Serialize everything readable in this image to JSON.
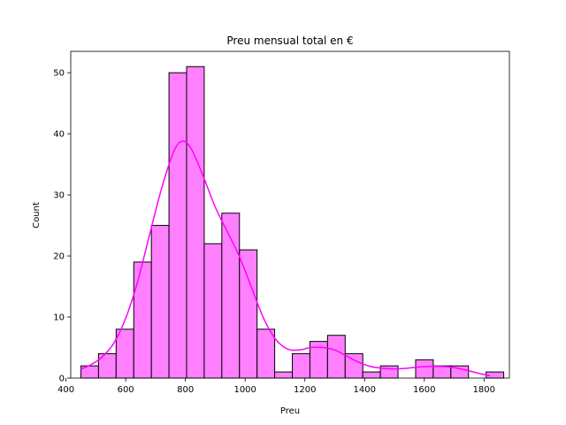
{
  "chart_data": {
    "type": "bar",
    "title": "Preu mensual total en €",
    "xlabel": "Preu",
    "ylabel": "Count",
    "xlim": [
      416,
      1885
    ],
    "ylim": [
      0,
      53.5
    ],
    "xticks": [
      400,
      600,
      800,
      1000,
      1200,
      1400,
      1600,
      1800
    ],
    "yticks": [
      0,
      10,
      20,
      30,
      40,
      50
    ],
    "grid": false,
    "bins": [
      {
        "x0": 450,
        "x1": 509,
        "count": 2
      },
      {
        "x0": 509,
        "x1": 568,
        "count": 4
      },
      {
        "x0": 568,
        "x1": 627,
        "count": 8
      },
      {
        "x0": 627,
        "x1": 686,
        "count": 19
      },
      {
        "x0": 686,
        "x1": 745,
        "count": 25
      },
      {
        "x0": 745,
        "x1": 804,
        "count": 50
      },
      {
        "x0": 804,
        "x1": 863,
        "count": 51
      },
      {
        "x0": 863,
        "x1": 922,
        "count": 22
      },
      {
        "x0": 922,
        "x1": 981,
        "count": 27
      },
      {
        "x0": 981,
        "x1": 1040,
        "count": 21
      },
      {
        "x0": 1040,
        "x1": 1099,
        "count": 8
      },
      {
        "x0": 1099,
        "x1": 1158,
        "count": 1
      },
      {
        "x0": 1158,
        "x1": 1217,
        "count": 4
      },
      {
        "x0": 1217,
        "x1": 1276,
        "count": 6
      },
      {
        "x0": 1276,
        "x1": 1335,
        "count": 7
      },
      {
        "x0": 1335,
        "x1": 1394,
        "count": 4
      },
      {
        "x0": 1394,
        "x1": 1453,
        "count": 1
      },
      {
        "x0": 1453,
        "x1": 1512,
        "count": 2
      },
      {
        "x0": 1512,
        "x1": 1571,
        "count": 0
      },
      {
        "x0": 1571,
        "x1": 1630,
        "count": 3
      },
      {
        "x0": 1630,
        "x1": 1689,
        "count": 2
      },
      {
        "x0": 1689,
        "x1": 1748,
        "count": 2
      },
      {
        "x0": 1748,
        "x1": 1807,
        "count": 0
      },
      {
        "x0": 1807,
        "x1": 1866,
        "count": 1
      }
    ],
    "kde": {
      "x": [
        450,
        480,
        520,
        560,
        600,
        640,
        680,
        720,
        760,
        790,
        820,
        860,
        900,
        940,
        980,
        1020,
        1060,
        1100,
        1140,
        1180,
        1220,
        1260,
        1300,
        1340,
        1380,
        1420,
        1460,
        1500,
        1540,
        1580,
        1620,
        1660,
        1700,
        1740,
        1780,
        1820
      ],
      "y": [
        1.5,
        2.1,
        3.4,
        5.7,
        9.8,
        15.8,
        23.5,
        31.0,
        37.0,
        38.8,
        37.5,
        33.0,
        28.0,
        24.0,
        20.0,
        15.0,
        10.0,
        6.5,
        4.8,
        4.6,
        5.0,
        5.0,
        4.6,
        3.6,
        2.6,
        1.9,
        1.6,
        1.5,
        1.6,
        1.8,
        1.9,
        1.9,
        1.7,
        1.3,
        0.8,
        0.4
      ]
    },
    "colors": {
      "bar_fill": "#ff80ff",
      "bar_edge": "#000000",
      "kde_line": "#ff00ff"
    }
  }
}
